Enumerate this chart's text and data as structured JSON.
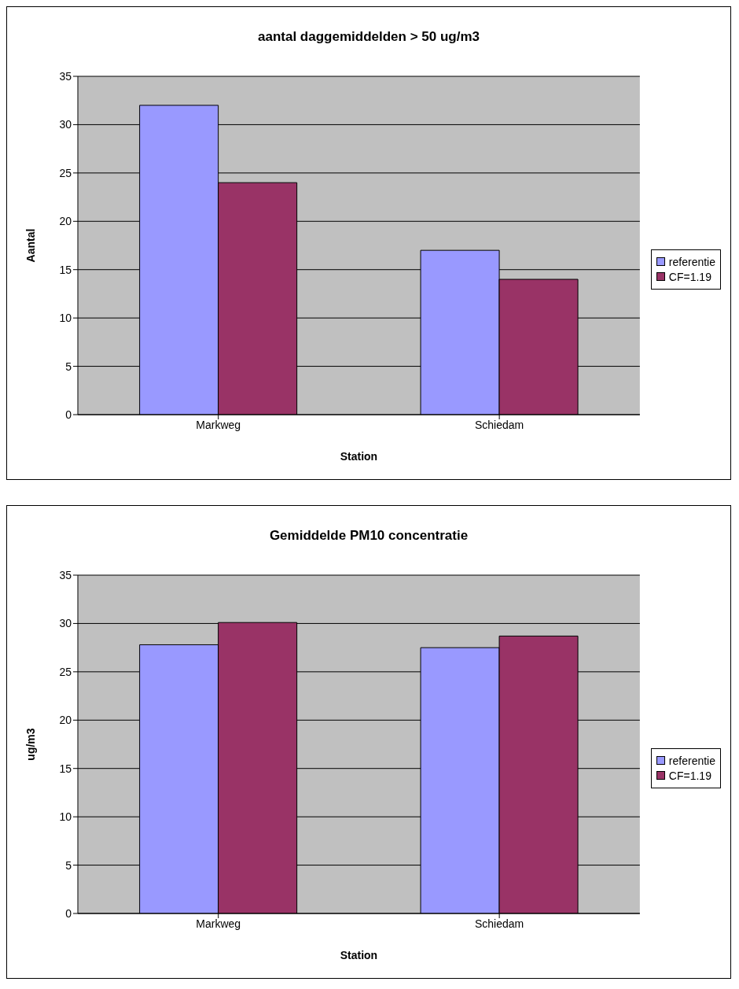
{
  "chart_data": [
    {
      "type": "bar",
      "title": "aantal daggemiddelden > 50 ug/m3",
      "xlabel": "Station",
      "ylabel": "Aantal",
      "categories": [
        "Markweg",
        "Schiedam"
      ],
      "series": [
        {
          "name": "referentie",
          "color": "#9999ff",
          "values": [
            32,
            17
          ]
        },
        {
          "name": "CF=1.19",
          "color": "#993366",
          "values": [
            24,
            14
          ]
        }
      ],
      "ylim": [
        0,
        35
      ],
      "yticks": [
        0,
        5,
        10,
        15,
        20,
        25,
        30,
        35
      ],
      "grid": "y",
      "legend": "right"
    },
    {
      "type": "bar",
      "title": "Gemiddelde PM10 concentratie",
      "xlabel": "Station",
      "ylabel": "ug/m3",
      "categories": [
        "Markweg",
        "Schiedam"
      ],
      "series": [
        {
          "name": "referentie",
          "color": "#9999ff",
          "values": [
            27.8,
            27.5
          ]
        },
        {
          "name": "CF=1.19",
          "color": "#993366",
          "values": [
            30.1,
            28.7
          ]
        }
      ],
      "ylim": [
        0,
        35
      ],
      "yticks": [
        0,
        5,
        10,
        15,
        20,
        25,
        30,
        35
      ],
      "grid": "y",
      "legend": "right"
    }
  ]
}
